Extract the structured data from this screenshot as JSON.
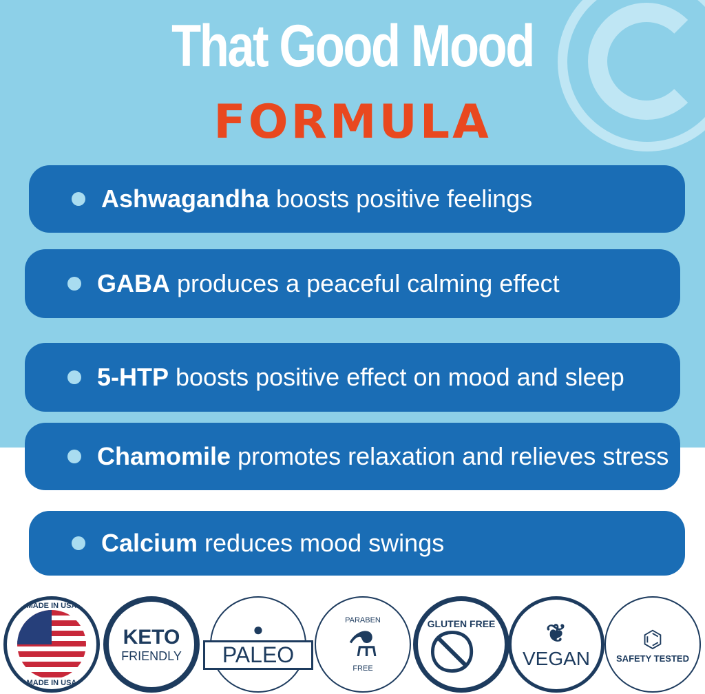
{
  "header": {
    "title": "That Good Mood",
    "subtitle": "FORMULA",
    "logo_letter": "G"
  },
  "ingredients": [
    {
      "name": "Ashwagandha",
      "text": " boosts positive feelings"
    },
    {
      "name": "GABA",
      "text": " produces a peaceful calming effect"
    },
    {
      "name": "5-HTP",
      "text": " boosts positive effect on mood and sleep"
    },
    {
      "name": "Chamomile",
      "text": " promotes relaxation and relieves stress"
    },
    {
      "name": "Calcium",
      "text": " reduces mood swings"
    }
  ],
  "badges": {
    "usa": "MADE IN USA",
    "keto1": "KETO",
    "keto2": "FRIENDLY",
    "paleo": "PALEO",
    "paraben1": "PARABEN",
    "paraben2": "FREE",
    "gluten": "GLUTEN FREE",
    "vegan": "VEGAN",
    "safety": "SAFETY TESTED"
  },
  "colors": {
    "sky": "#8dd0e8",
    "pill": "#1a6db5",
    "accent": "#e9481f",
    "badge": "#1d3b5e"
  }
}
